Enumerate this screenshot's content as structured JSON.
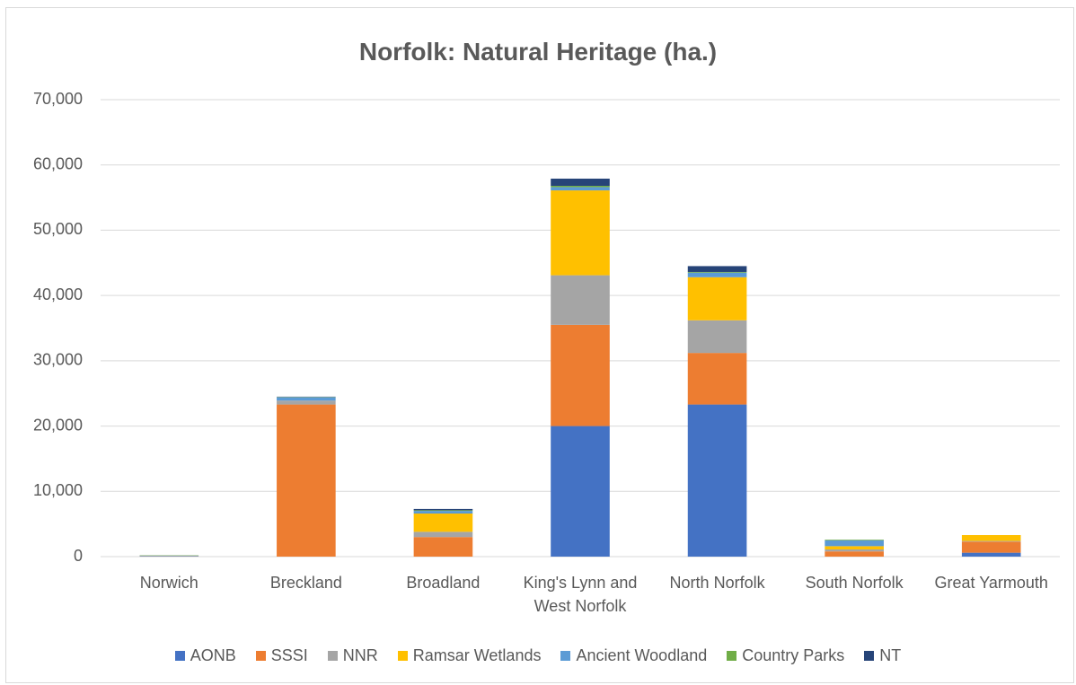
{
  "chart_data": {
    "type": "bar",
    "stacked": true,
    "title": "Norfolk: Natural Heritage (ha.)",
    "categories": [
      "Norwich",
      "Breckland",
      "Broadland",
      "King's Lynn and West Norfolk",
      "North Norfolk",
      "South Norfolk",
      "Great Yarmouth"
    ],
    "series": [
      {
        "name": "AONB",
        "color": "#4472c4",
        "values": [
          0,
          0,
          0,
          20000,
          23300,
          0,
          600
        ]
      },
      {
        "name": "SSSI",
        "color": "#ed7d31",
        "values": [
          50,
          23300,
          3000,
          15500,
          7900,
          800,
          1700
        ]
      },
      {
        "name": "NNR",
        "color": "#a5a5a5",
        "values": [
          0,
          600,
          800,
          7600,
          5000,
          300,
          100
        ]
      },
      {
        "name": "Ramsar Wetlands",
        "color": "#ffc000",
        "values": [
          0,
          0,
          2800,
          13000,
          6600,
          500,
          900
        ]
      },
      {
        "name": "Ancient Woodland",
        "color": "#5b9bd5",
        "values": [
          100,
          500,
          400,
          500,
          700,
          900,
          0
        ]
      },
      {
        "name": "Country Parks",
        "color": "#70ad47",
        "values": [
          50,
          50,
          100,
          200,
          100,
          100,
          0
        ]
      },
      {
        "name": "NT",
        "color": "#264478",
        "values": [
          0,
          50,
          200,
          1100,
          900,
          0,
          0
        ]
      }
    ],
    "ylim": [
      0,
      70000
    ],
    "yticks": [
      0,
      {
        "value": 10000,
        "label": "10,000"
      },
      {
        "value": 20000,
        "label": "20,000"
      },
      {
        "value": 30000,
        "label": "30,000"
      },
      {
        "value": 40000,
        "label": "40,000"
      },
      {
        "value": 50000,
        "label": "50,000"
      },
      {
        "value": 60000,
        "label": "60,000"
      },
      {
        "value": 70000,
        "label": "70,000"
      }
    ],
    "grid": true,
    "legend": "bottom"
  }
}
